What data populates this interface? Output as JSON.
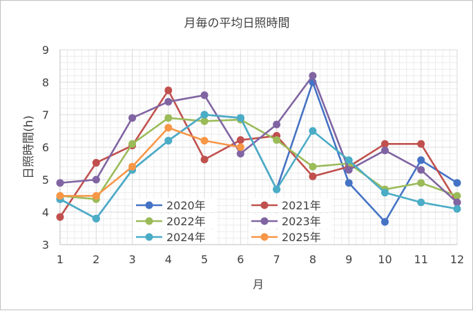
{
  "chart_data": {
    "type": "line",
    "title": "月毎の平均日照時間",
    "xlabel": "月",
    "ylabel": "日照時間(h)",
    "categories": [
      "1",
      "2",
      "3",
      "4",
      "5",
      "6",
      "7",
      "8",
      "9",
      "10",
      "11",
      "12"
    ],
    "ylim": [
      3,
      9
    ],
    "yticks": [
      "3",
      "4",
      "5",
      "6",
      "7",
      "8",
      "9"
    ],
    "grid": true,
    "legend_position": "inside-bottom-center",
    "series": [
      {
        "name": "2020年",
        "color": "#4472c4",
        "values": [
          4.4,
          3.8,
          5.3,
          6.2,
          7.0,
          6.9,
          4.7,
          8.0,
          4.9,
          3.7,
          5.6,
          4.9
        ]
      },
      {
        "name": "2021年",
        "color": "#c0504d",
        "values": [
          3.85,
          5.52,
          6.05,
          7.75,
          5.62,
          6.22,
          6.35,
          5.1,
          5.4,
          6.1,
          6.1,
          4.3
        ]
      },
      {
        "name": "2022年",
        "color": "#9bbb59",
        "values": [
          4.5,
          4.4,
          6.1,
          6.9,
          6.8,
          6.85,
          6.22,
          5.4,
          5.5,
          4.7,
          4.9,
          4.5
        ]
      },
      {
        "name": "2023年",
        "color": "#8064a2",
        "values": [
          4.9,
          5.0,
          6.9,
          7.4,
          7.6,
          5.8,
          6.7,
          8.2,
          5.3,
          5.9,
          5.3,
          4.3
        ]
      },
      {
        "name": "2024年",
        "color": "#4bacc6",
        "values": [
          4.4,
          3.8,
          5.3,
          6.2,
          7.0,
          6.9,
          4.7,
          6.5,
          5.6,
          4.6,
          4.3,
          4.1
        ]
      },
      {
        "name": "2025年",
        "color": "#f79646",
        "values": [
          4.5,
          4.5,
          5.4,
          6.6,
          6.2,
          6.0,
          null,
          null,
          null,
          null,
          null,
          null
        ]
      }
    ]
  }
}
